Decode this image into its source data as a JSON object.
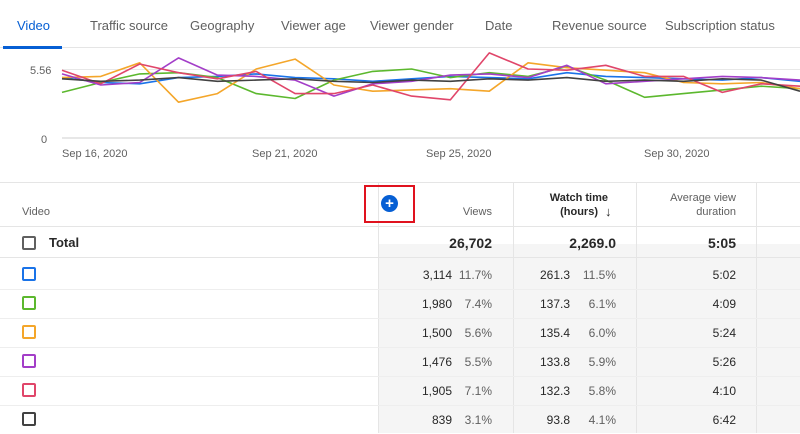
{
  "tabs": [
    {
      "label": "Video",
      "active": true
    },
    {
      "label": "Traffic source"
    },
    {
      "label": "Geography"
    },
    {
      "label": "Viewer age"
    },
    {
      "label": "Viewer gender"
    },
    {
      "label": "Date"
    },
    {
      "label": "Revenue source"
    },
    {
      "label": "Subscription status"
    }
  ],
  "chart_data": {
    "type": "line",
    "y_ticks": [
      "5.56",
      "0"
    ],
    "x_tick_labels": [
      "Sep 16, 2020",
      "Sep 21, 2020",
      "Sep 25, 2020",
      "Sep 30, 2020"
    ],
    "series": [
      {
        "color": "#1a73e8",
        "values": [
          4.9,
          4.5,
          4.4,
          4.9,
          5.0,
          5.2,
          4.9,
          4.8,
          4.6,
          4.8,
          5.0,
          4.9,
          4.8,
          5.3,
          5.0,
          4.9,
          4.8,
          4.7,
          4.9,
          4.6
        ]
      },
      {
        "color": "#5cb82e",
        "values": [
          3.7,
          4.5,
          5.2,
          5.3,
          4.9,
          3.6,
          3.2,
          4.7,
          5.4,
          5.6,
          4.9,
          5.3,
          5.0,
          5.8,
          4.7,
          3.3,
          3.6,
          3.9,
          4.2,
          4.0
        ]
      },
      {
        "color": "#f4a62a",
        "values": [
          4.9,
          5.0,
          6.1,
          2.9,
          3.6,
          5.6,
          6.4,
          4.3,
          3.8,
          3.9,
          4.0,
          3.8,
          6.1,
          5.7,
          5.5,
          5.3,
          4.5,
          4.4,
          4.5,
          4.0
        ]
      },
      {
        "color": "#a33ec8",
        "values": [
          5.2,
          4.3,
          4.5,
          6.5,
          5.1,
          5.0,
          4.7,
          3.4,
          4.4,
          4.6,
          5.1,
          5.2,
          4.9,
          5.9,
          4.4,
          4.6,
          4.8,
          5.0,
          4.9,
          4.7
        ]
      },
      {
        "color": "#e0466a",
        "values": [
          5.5,
          4.4,
          6.0,
          5.3,
          4.8,
          5.4,
          3.6,
          3.6,
          4.3,
          3.4,
          3.1,
          6.9,
          5.6,
          5.5,
          5.9,
          5.0,
          5.0,
          3.7,
          4.4,
          4.2
        ]
      },
      {
        "color": "#424242",
        "values": [
          4.8,
          4.6,
          4.7,
          4.9,
          4.6,
          4.7,
          4.8,
          4.6,
          4.5,
          4.7,
          4.6,
          4.8,
          4.7,
          4.9,
          4.6,
          4.7,
          4.6,
          4.8,
          4.7,
          3.8
        ]
      }
    ],
    "ylim": [
      0,
      7.3
    ]
  },
  "table": {
    "headers": {
      "video": "Video",
      "views": "Views",
      "watch_time_line1": "Watch time",
      "watch_time_line2": "(hours)",
      "sort_arrow": "↓",
      "avg_line1": "Average view",
      "avg_line2": "duration",
      "add_icon": "+"
    },
    "total": {
      "label": "Total",
      "views": "26,702",
      "watch_time": "2,269.0",
      "avg": "5:05"
    },
    "rows": [
      {
        "color": "#1a73e8",
        "views": "3,114",
        "views_pct": "11.7%",
        "watch": "261.3",
        "watch_pct": "11.5%",
        "avg": "5:02"
      },
      {
        "color": "#5cb82e",
        "views": "1,980",
        "views_pct": "7.4%",
        "watch": "137.3",
        "watch_pct": "6.1%",
        "avg": "4:09"
      },
      {
        "color": "#f4a62a",
        "views": "1,500",
        "views_pct": "5.6%",
        "watch": "135.4",
        "watch_pct": "6.0%",
        "avg": "5:24"
      },
      {
        "color": "#a33ec8",
        "views": "1,476",
        "views_pct": "5.5%",
        "watch": "133.8",
        "watch_pct": "5.9%",
        "avg": "5:26"
      },
      {
        "color": "#e0466a",
        "views": "1,905",
        "views_pct": "7.1%",
        "watch": "132.3",
        "watch_pct": "5.8%",
        "avg": "4:10"
      },
      {
        "color": "#424242",
        "views": "839",
        "views_pct": "3.1%",
        "watch": "93.8",
        "watch_pct": "4.1%",
        "avg": "6:42"
      }
    ]
  }
}
